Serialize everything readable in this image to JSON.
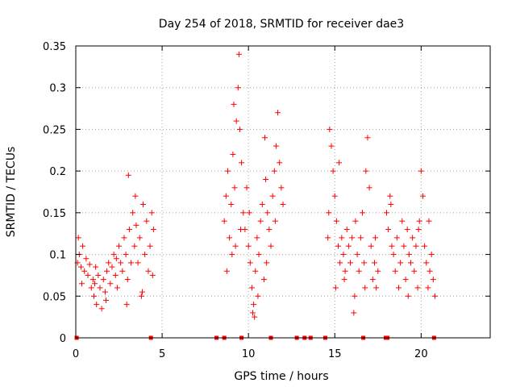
{
  "chart_data": {
    "type": "scatter",
    "title": "Day 254 of 2018, SRMTID for receiver dae3",
    "xlabel": "GPS time / hours",
    "ylabel": "SRMTID / TECUs",
    "xlim": [
      0,
      24
    ],
    "ylim": [
      0,
      0.35
    ],
    "x_ticks": [
      0,
      5,
      10,
      15,
      20
    ],
    "x_tick_labels": [
      "0",
      "5",
      "10",
      "15",
      "20"
    ],
    "y_ticks": [
      0,
      0.05,
      0.1,
      0.15,
      0.2,
      0.25,
      0.3,
      0.35
    ],
    "y_tick_labels": [
      "0",
      "0.05",
      "0.1",
      "0.15",
      "0.2",
      "0.25",
      "0.3",
      "0.35"
    ],
    "grid": true,
    "marker": "plus",
    "color": "#ff0000",
    "zero_points_x": [
      0.05,
      4.35,
      8.15,
      8.6,
      9.6,
      11.3,
      12.8,
      13.25,
      13.6,
      14.45,
      16.65,
      17.95,
      18.05,
      20.75
    ],
    "clusters": [
      {
        "x_start": 0.0,
        "x_end": 4.6,
        "points": [
          [
            0.1,
            0.09
          ],
          [
            0.2,
            0.1
          ],
          [
            0.3,
            0.085
          ],
          [
            0.4,
            0.11
          ],
          [
            0.5,
            0.08
          ],
          [
            0.6,
            0.095
          ],
          [
            0.7,
            0.075
          ],
          [
            0.8,
            0.088
          ],
          [
            0.9,
            0.06
          ],
          [
            1.0,
            0.07
          ],
          [
            1.05,
            0.05
          ],
          [
            1.1,
            0.065
          ],
          [
            1.2,
            0.04
          ],
          [
            1.3,
            0.075
          ],
          [
            1.4,
            0.06
          ],
          [
            1.5,
            0.035
          ],
          [
            1.6,
            0.07
          ],
          [
            1.7,
            0.055
          ],
          [
            1.8,
            0.08
          ],
          [
            1.9,
            0.09
          ],
          [
            2.0,
            0.065
          ],
          [
            2.1,
            0.085
          ],
          [
            2.2,
            0.1
          ],
          [
            2.3,
            0.075
          ],
          [
            2.4,
            0.06
          ],
          [
            2.5,
            0.11
          ],
          [
            2.6,
            0.09
          ],
          [
            2.7,
            0.08
          ],
          [
            2.8,
            0.12
          ],
          [
            2.9,
            0.1
          ],
          [
            3.0,
            0.07
          ],
          [
            3.05,
            0.195
          ],
          [
            3.1,
            0.13
          ],
          [
            3.2,
            0.09
          ],
          [
            3.3,
            0.15
          ],
          [
            3.4,
            0.11
          ],
          [
            3.5,
            0.135
          ],
          [
            3.6,
            0.09
          ],
          [
            3.7,
            0.12
          ],
          [
            3.8,
            0.05
          ],
          [
            3.9,
            0.16
          ],
          [
            4.0,
            0.1
          ],
          [
            4.1,
            0.14
          ],
          [
            4.2,
            0.08
          ],
          [
            4.3,
            0.11
          ],
          [
            4.4,
            0.15
          ],
          [
            4.5,
            0.13
          ],
          [
            0.15,
            0.12
          ],
          [
            0.35,
            0.065
          ],
          [
            1.15,
            0.085
          ],
          [
            1.75,
            0.045
          ],
          [
            2.35,
            0.095
          ],
          [
            2.95,
            0.04
          ],
          [
            3.45,
            0.17
          ],
          [
            3.85,
            0.055
          ],
          [
            4.45,
            0.075
          ]
        ]
      },
      {
        "x_start": 8.5,
        "x_end": 12.1,
        "points": [
          [
            8.6,
            0.14
          ],
          [
            8.7,
            0.17
          ],
          [
            8.8,
            0.2
          ],
          [
            8.9,
            0.12
          ],
          [
            9.0,
            0.16
          ],
          [
            9.1,
            0.22
          ],
          [
            9.15,
            0.28
          ],
          [
            9.2,
            0.18
          ],
          [
            9.3,
            0.26
          ],
          [
            9.4,
            0.3
          ],
          [
            9.45,
            0.34
          ],
          [
            9.5,
            0.25
          ],
          [
            9.6,
            0.21
          ],
          [
            9.7,
            0.15
          ],
          [
            9.8,
            0.13
          ],
          [
            9.9,
            0.18
          ],
          [
            10.0,
            0.11
          ],
          [
            10.1,
            0.09
          ],
          [
            10.2,
            0.06
          ],
          [
            10.3,
            0.04
          ],
          [
            10.35,
            0.025
          ],
          [
            10.4,
            0.08
          ],
          [
            10.5,
            0.12
          ],
          [
            10.6,
            0.1
          ],
          [
            10.7,
            0.14
          ],
          [
            10.8,
            0.16
          ],
          [
            10.9,
            0.07
          ],
          [
            11.0,
            0.19
          ],
          [
            11.1,
            0.15
          ],
          [
            11.2,
            0.13
          ],
          [
            11.3,
            0.11
          ],
          [
            11.4,
            0.17
          ],
          [
            11.5,
            0.2
          ],
          [
            11.6,
            0.23
          ],
          [
            11.7,
            0.27
          ],
          [
            11.8,
            0.21
          ],
          [
            11.9,
            0.18
          ],
          [
            12.0,
            0.16
          ],
          [
            9.05,
            0.1
          ],
          [
            9.55,
            0.13
          ],
          [
            10.05,
            0.15
          ],
          [
            10.55,
            0.05
          ],
          [
            11.05,
            0.09
          ],
          [
            11.55,
            0.14
          ],
          [
            8.75,
            0.08
          ],
          [
            9.25,
            0.11
          ],
          [
            10.25,
            0.03
          ],
          [
            10.95,
            0.24
          ]
        ]
      },
      {
        "x_start": 14.5,
        "x_end": 20.9,
        "points": [
          [
            14.6,
            0.12
          ],
          [
            14.7,
            0.25
          ],
          [
            14.8,
            0.23
          ],
          [
            14.9,
            0.2
          ],
          [
            15.0,
            0.17
          ],
          [
            15.1,
            0.14
          ],
          [
            15.2,
            0.11
          ],
          [
            15.3,
            0.09
          ],
          [
            15.4,
            0.12
          ],
          [
            15.5,
            0.1
          ],
          [
            15.6,
            0.08
          ],
          [
            15.7,
            0.13
          ],
          [
            15.8,
            0.11
          ],
          [
            15.9,
            0.09
          ],
          [
            16.0,
            0.12
          ],
          [
            16.1,
            0.03
          ],
          [
            16.2,
            0.14
          ],
          [
            16.3,
            0.1
          ],
          [
            16.4,
            0.08
          ],
          [
            16.5,
            0.12
          ],
          [
            16.6,
            0.15
          ],
          [
            16.7,
            0.09
          ],
          [
            16.8,
            0.2
          ],
          [
            16.9,
            0.24
          ],
          [
            17.0,
            0.18
          ],
          [
            17.1,
            0.11
          ],
          [
            17.2,
            0.07
          ],
          [
            17.3,
            0.09
          ],
          [
            17.4,
            0.06
          ],
          [
            17.5,
            0.08
          ],
          [
            18.0,
            0.15
          ],
          [
            18.1,
            0.13
          ],
          [
            18.2,
            0.17
          ],
          [
            18.3,
            0.11
          ],
          [
            18.4,
            0.1
          ],
          [
            18.5,
            0.08
          ],
          [
            18.6,
            0.12
          ],
          [
            18.7,
            0.06
          ],
          [
            18.8,
            0.09
          ],
          [
            18.9,
            0.14
          ],
          [
            19.0,
            0.11
          ],
          [
            19.1,
            0.07
          ],
          [
            19.2,
            0.13
          ],
          [
            19.3,
            0.1
          ],
          [
            19.4,
            0.09
          ],
          [
            19.5,
            0.12
          ],
          [
            19.6,
            0.08
          ],
          [
            19.7,
            0.11
          ],
          [
            19.8,
            0.06
          ],
          [
            19.9,
            0.14
          ],
          [
            20.0,
            0.2
          ],
          [
            20.1,
            0.17
          ],
          [
            20.2,
            0.11
          ],
          [
            20.3,
            0.09
          ],
          [
            20.4,
            0.06
          ],
          [
            20.5,
            0.08
          ],
          [
            20.6,
            0.1
          ],
          [
            20.7,
            0.07
          ],
          [
            20.8,
            0.05
          ],
          [
            15.05,
            0.06
          ],
          [
            15.55,
            0.07
          ],
          [
            16.15,
            0.05
          ],
          [
            16.75,
            0.06
          ],
          [
            17.35,
            0.12
          ],
          [
            18.25,
            0.16
          ],
          [
            19.25,
            0.05
          ],
          [
            19.85,
            0.13
          ],
          [
            20.45,
            0.14
          ],
          [
            14.65,
            0.15
          ],
          [
            15.25,
            0.21
          ]
        ]
      }
    ]
  }
}
